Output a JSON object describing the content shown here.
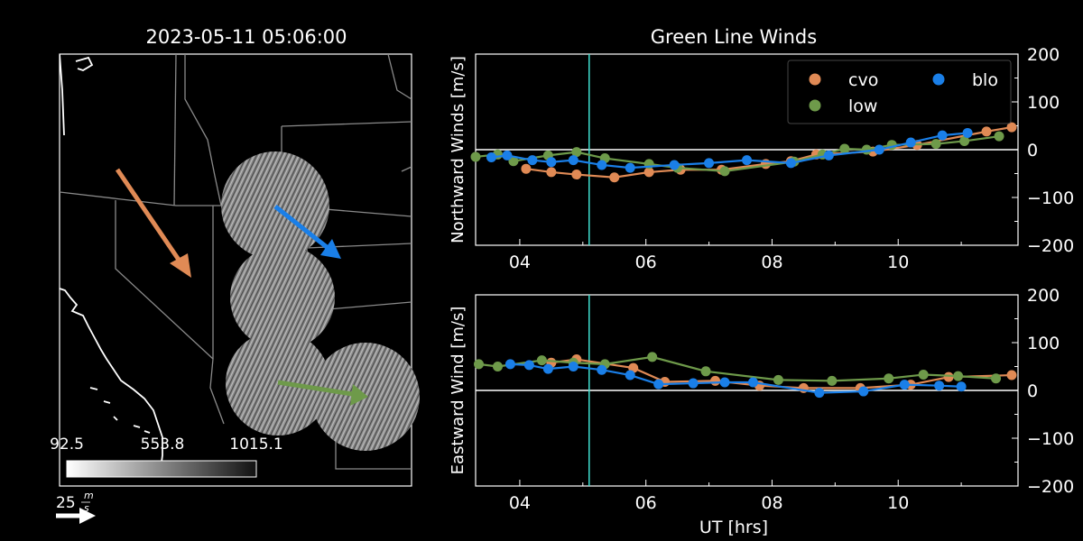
{
  "map": {
    "timestamp": "2023-05-11 05:06:00",
    "colorbar_ticks": [
      "92.5",
      "553.8",
      "1015.1"
    ],
    "scale_label": "25",
    "scale_units_num": "m",
    "scale_units_den": "s",
    "arrows": [
      {
        "station": "cvo",
        "color": "#e08a55"
      },
      {
        "station": "blo",
        "color": "#1a7fe8"
      },
      {
        "station": "low",
        "color": "#6e9a4a"
      }
    ]
  },
  "chart_data": {
    "type": "line",
    "title": "Green Line Winds",
    "xlabel": "UT [hrs]",
    "xlim": [
      3.3,
      11.9
    ],
    "x_ticks": [
      "04",
      "06",
      "08",
      "10"
    ],
    "x_tick_values": [
      4,
      6,
      8,
      10
    ],
    "current_time": 5.1,
    "current_time_color": "#40e0d0",
    "legend": {
      "position": "top-right",
      "ncol": 2
    },
    "series_colors": {
      "cvo": "#e08a55",
      "low": "#6e9a4a",
      "blo": "#1a7fe8"
    },
    "panels": [
      {
        "ylabel": "Northward Winds [m/s]",
        "ylim": [
          -200,
          200
        ],
        "y_ticks": [
          200,
          100,
          0,
          -100,
          -200
        ],
        "y_tick_labels": [
          "200",
          "100",
          "0",
          "−100",
          "−200"
        ],
        "series": [
          {
            "name": "cvo",
            "x": [
              4.1,
              4.5,
              4.9,
              5.5,
              6.05,
              6.55,
              7.2,
              7.9,
              8.3,
              8.7,
              9.6,
              10.3,
              11.4,
              11.8
            ],
            "y": [
              -40,
              -47,
              -52,
              -58,
              -47,
              -42,
              -42,
              -30,
              -24,
              -10,
              -4,
              10,
              38,
              47
            ]
          },
          {
            "name": "low",
            "x": [
              3.3,
              3.65,
              3.9,
              4.45,
              4.9,
              5.35,
              6.05,
              6.5,
              7.25,
              8.35,
              8.8,
              9.15,
              9.5,
              9.9,
              10.6,
              11.05,
              11.6
            ],
            "y": [
              -15,
              -10,
              -24,
              -12,
              -5,
              -18,
              -30,
              -38,
              -45,
              -25,
              -10,
              2,
              0,
              10,
              12,
              18,
              28
            ]
          },
          {
            "name": "blo",
            "x": [
              3.55,
              3.8,
              4.2,
              4.5,
              4.85,
              5.3,
              5.75,
              6.45,
              7.0,
              7.6,
              8.3,
              8.9,
              9.7,
              10.2,
              10.7,
              11.1
            ],
            "y": [
              -16,
              -12,
              -22,
              -26,
              -22,
              -32,
              -38,
              -32,
              -28,
              -22,
              -28,
              -12,
              0,
              15,
              30,
              35
            ]
          }
        ]
      },
      {
        "ylabel": "Eastward Wind [m/s]",
        "ylim": [
          -200,
          200
        ],
        "y_ticks": [
          200,
          100,
          0,
          -100,
          -200
        ],
        "y_tick_labels": [
          "200",
          "100",
          "0",
          "−100",
          "−200"
        ],
        "series": [
          {
            "name": "cvo",
            "x": [
              4.5,
              4.9,
              5.8,
              6.3,
              7.1,
              7.8,
              8.5,
              9.4,
              10.2,
              10.8,
              11.8
            ],
            "y": [
              58,
              65,
              47,
              18,
              20,
              10,
              5,
              5,
              12,
              28,
              32
            ]
          },
          {
            "name": "low",
            "x": [
              3.35,
              3.65,
              4.35,
              4.85,
              5.35,
              6.1,
              6.95,
              8.1,
              8.95,
              9.85,
              10.4,
              10.95,
              11.55
            ],
            "y": [
              55,
              50,
              63,
              58,
              55,
              70,
              40,
              22,
              20,
              25,
              33,
              30,
              25
            ]
          },
          {
            "name": "blo",
            "x": [
              3.85,
              4.15,
              4.45,
              4.85,
              5.3,
              5.75,
              6.2,
              6.75,
              7.25,
              7.7,
              8.75,
              9.45,
              10.1,
              10.65,
              11.0
            ],
            "y": [
              55,
              53,
              45,
              50,
              43,
              32,
              13,
              15,
              17,
              17,
              -5,
              -2,
              12,
              10,
              8
            ]
          }
        ]
      }
    ]
  }
}
